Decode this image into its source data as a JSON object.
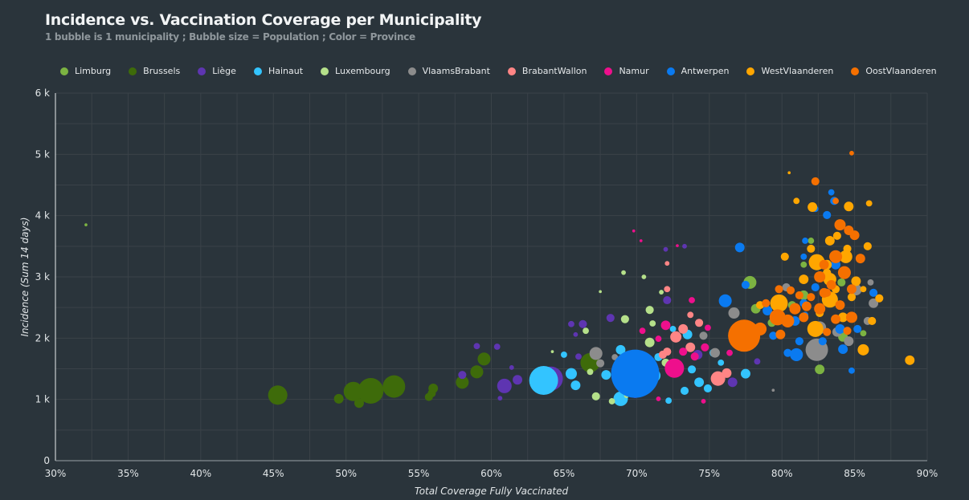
{
  "title": "Incidence vs. Vaccination Coverage per Municipality",
  "subtitle": "1 bubble is 1 municipality ; Bubble size = Population ;  Color = Province",
  "chart_data": {
    "type": "scatter",
    "variant": "bubble",
    "title": "Incidence vs. Vaccination Coverage per Municipality",
    "subtitle": "1 bubble is 1 municipality ; Bubble size = Population ;  Color = Province",
    "xlabel": "Total Coverage Fully Vaccinated",
    "ylabel": "Incidence (Sum 14 days)",
    "xlim": [
      30,
      90
    ],
    "ylim": [
      0,
      6000
    ],
    "x_ticks": [
      "30%",
      "35%",
      "40%",
      "45%",
      "50%",
      "55%",
      "60%",
      "65%",
      "70%",
      "75%",
      "80%",
      "85%",
      "90%"
    ],
    "y_ticks": [
      "0",
      "1 k",
      "2 k",
      "3 k",
      "4 k",
      "5 k",
      "6 k"
    ],
    "grid": true,
    "legend_position": "top",
    "point_format": [
      "coverage_pct",
      "incidence",
      "population_thousands"
    ],
    "series": [
      {
        "name": "Limburg",
        "color": "#7cb342",
        "points": [
          [
            32.1,
            3850,
            2
          ],
          [
            77.8,
            2910,
            38
          ],
          [
            80.7,
            2540,
            15
          ],
          [
            81.5,
            2700,
            21
          ],
          [
            78.2,
            2480,
            21
          ],
          [
            81.5,
            3200,
            9
          ],
          [
            82.0,
            3590,
            9
          ],
          [
            84.2,
            2020,
            21
          ],
          [
            85.6,
            2080,
            9
          ],
          [
            79.3,
            2250,
            15
          ],
          [
            82.6,
            1490,
            21
          ],
          [
            84.1,
            2910,
            15
          ]
        ]
      },
      {
        "name": "Brussels",
        "color": "#3e6b0a",
        "points": [
          [
            45.3,
            1070,
            85
          ],
          [
            49.5,
            1010,
            21
          ],
          [
            50.5,
            1130,
            85
          ],
          [
            50.9,
            940,
            21
          ],
          [
            51.7,
            1140,
            150
          ],
          [
            53.3,
            1210,
            115
          ],
          [
            55.9,
            1100,
            15
          ],
          [
            56.0,
            1180,
            21
          ],
          [
            55.7,
            1040,
            15
          ],
          [
            58.0,
            1280,
            38
          ],
          [
            59.0,
            1450,
            38
          ],
          [
            59.5,
            1660,
            38
          ],
          [
            66.8,
            1600,
            85
          ]
        ]
      },
      {
        "name": "Liège",
        "color": "#5e35b1",
        "points": [
          [
            58.0,
            1400,
            15
          ],
          [
            59.0,
            1870,
            9
          ],
          [
            60.4,
            1860,
            9
          ],
          [
            60.9,
            1220,
            48
          ],
          [
            61.8,
            1320,
            21
          ],
          [
            61.4,
            1520,
            5
          ],
          [
            64.1,
            1340,
            132
          ],
          [
            60.6,
            1020,
            5
          ],
          [
            65.5,
            2230,
            9
          ],
          [
            66.3,
            2230,
            15
          ],
          [
            65.8,
            2060,
            5
          ],
          [
            68.2,
            2330,
            15
          ],
          [
            76.6,
            1280,
            21
          ],
          [
            78.3,
            1620,
            9
          ],
          [
            72.0,
            3450,
            5
          ],
          [
            73.3,
            3500,
            5
          ],
          [
            72.1,
            2620,
            15
          ],
          [
            69.9,
            1100,
            21
          ],
          [
            74.2,
            1730,
            21
          ],
          [
            66.0,
            1700,
            9
          ],
          [
            71.0,
            1950,
            9
          ]
        ]
      },
      {
        "name": "Hainaut",
        "color": "#33c4ff",
        "points": [
          [
            63.6,
            1310,
            190
          ],
          [
            65.5,
            1420,
            29
          ],
          [
            65.0,
            1730,
            9
          ],
          [
            65.8,
            1230,
            21
          ],
          [
            68.9,
            1010,
            48
          ],
          [
            69.3,
            1340,
            115
          ],
          [
            68.9,
            1810,
            21
          ],
          [
            71.5,
            1690,
            15
          ],
          [
            73.3,
            1140,
            15
          ],
          [
            74.3,
            1280,
            21
          ],
          [
            77.5,
            1420,
            21
          ],
          [
            73.5,
            2060,
            21
          ],
          [
            75.3,
            1760,
            15
          ],
          [
            72.2,
            980,
            9
          ],
          [
            74.9,
            1180,
            15
          ],
          [
            71.2,
            1390,
            38
          ],
          [
            73.8,
            1490,
            15
          ],
          [
            75.8,
            1600,
            9
          ],
          [
            67.9,
            1400,
            21
          ],
          [
            72.5,
            2150,
            9
          ]
        ]
      },
      {
        "name": "Luxembourg",
        "color": "#b5e08a",
        "points": [
          [
            64.2,
            1780,
            2
          ],
          [
            67.5,
            2760,
            2
          ],
          [
            69.1,
            3070,
            5
          ],
          [
            70.5,
            3000,
            5
          ],
          [
            69.2,
            2310,
            15
          ],
          [
            70.9,
            2460,
            15
          ],
          [
            70.9,
            1930,
            21
          ],
          [
            67.2,
            1050,
            15
          ],
          [
            68.3,
            970,
            9
          ],
          [
            66.8,
            1450,
            9
          ],
          [
            66.5,
            2120,
            9
          ],
          [
            69.3,
            1060,
            5
          ],
          [
            71.1,
            2240,
            9
          ],
          [
            71.7,
            2750,
            5
          ],
          [
            72.0,
            1600,
            15
          ],
          [
            70.0,
            1700,
            9
          ]
        ]
      },
      {
        "name": "VlaamsBrabant",
        "color": "#8c8c8c",
        "points": [
          [
            67.2,
            1750,
            38
          ],
          [
            67.5,
            1590,
            15
          ],
          [
            68.5,
            1690,
            9
          ],
          [
            76.7,
            2410,
            29
          ],
          [
            75.4,
            1760,
            21
          ],
          [
            79.4,
            1150,
            2
          ],
          [
            82.4,
            1810,
            115
          ],
          [
            82.6,
            2170,
            38
          ],
          [
            80.3,
            2830,
            15
          ],
          [
            85.1,
            2790,
            29
          ],
          [
            86.3,
            2570,
            21
          ],
          [
            84.6,
            1950,
            21
          ],
          [
            85.9,
            2280,
            15
          ],
          [
            86.1,
            2910,
            9
          ],
          [
            74.6,
            2040,
            15
          ],
          [
            77.0,
            2200,
            15
          ],
          [
            83.8,
            2100,
            21
          ]
        ]
      },
      {
        "name": "BrabantWallon",
        "color": "#ff8585",
        "points": [
          [
            72.1,
            3220,
            5
          ],
          [
            72.1,
            2800,
            9
          ],
          [
            72.7,
            2020,
            29
          ],
          [
            73.7,
            1850,
            21
          ],
          [
            75.6,
            1340,
            48
          ],
          [
            72.1,
            1780,
            15
          ],
          [
            73.7,
            2380,
            9
          ],
          [
            74.3,
            2250,
            15
          ],
          [
            73.2,
            2150,
            21
          ],
          [
            76.2,
            1430,
            21
          ],
          [
            71.8,
            1730,
            15
          ]
        ]
      },
      {
        "name": "Namur",
        "color": "#ee0f8c",
        "points": [
          [
            69.8,
            3750,
            2
          ],
          [
            70.3,
            3590,
            2
          ],
          [
            72.8,
            3510,
            2
          ],
          [
            72.6,
            1510,
            85
          ],
          [
            72.0,
            2210,
            21
          ],
          [
            73.2,
            1780,
            15
          ],
          [
            74.7,
            1850,
            15
          ],
          [
            71.5,
            1990,
            9
          ],
          [
            73.8,
            2620,
            9
          ],
          [
            70.4,
            2120,
            9
          ],
          [
            71.5,
            1010,
            5
          ],
          [
            74.6,
            970,
            5
          ],
          [
            74.9,
            2170,
            9
          ],
          [
            76.4,
            1760,
            9
          ],
          [
            74.0,
            1700,
            15
          ]
        ]
      },
      {
        "name": "Antwerpen",
        "color": "#0a7af0",
        "points": [
          [
            69.9,
            1420,
            530
          ],
          [
            77.1,
            3480,
            21
          ],
          [
            76.1,
            2610,
            38
          ],
          [
            77.5,
            2870,
            15
          ],
          [
            79.4,
            2040,
            15
          ],
          [
            80.9,
            2280,
            21
          ],
          [
            80.4,
            1760,
            15
          ],
          [
            81.0,
            1730,
            38
          ],
          [
            84.2,
            1820,
            21
          ],
          [
            84.8,
            1470,
            9
          ],
          [
            83.6,
            4240,
            15
          ],
          [
            83.1,
            4010,
            15
          ],
          [
            82.3,
            4110,
            9
          ],
          [
            83.4,
            4380,
            9
          ],
          [
            81.6,
            3590,
            9
          ],
          [
            81.5,
            3330,
            9
          ],
          [
            83.7,
            3200,
            21
          ],
          [
            82.3,
            2830,
            15
          ],
          [
            85.2,
            2150,
            15
          ],
          [
            82.8,
            1950,
            15
          ],
          [
            81.2,
            1950,
            15
          ],
          [
            81.5,
            2570,
            15
          ],
          [
            79.0,
            2450,
            21
          ],
          [
            86.3,
            2740,
            15
          ],
          [
            78.4,
            2150,
            9
          ],
          [
            81.6,
            2380,
            9
          ],
          [
            84.0,
            2150,
            21
          ]
        ]
      },
      {
        "name": "WestVlaanderen",
        "color": "#ffa600",
        "points": [
          [
            88.8,
            1640,
            21
          ],
          [
            85.6,
            1810,
            29
          ],
          [
            86.2,
            2280,
            15
          ],
          [
            86.7,
            2650,
            15
          ],
          [
            85.9,
            3500,
            15
          ],
          [
            86.0,
            4200,
            9
          ],
          [
            80.5,
            4700,
            2
          ],
          [
            81.0,
            4240,
            9
          ],
          [
            82.1,
            4140,
            21
          ],
          [
            84.6,
            4150,
            21
          ],
          [
            83.8,
            3670,
            15
          ],
          [
            82.4,
            3240,
            59
          ],
          [
            83.3,
            3590,
            21
          ],
          [
            84.4,
            3330,
            38
          ],
          [
            83.1,
            3200,
            21
          ],
          [
            83.7,
            2800,
            15
          ],
          [
            83.3,
            2630,
            59
          ],
          [
            82.3,
            2150,
            59
          ],
          [
            79.8,
            2570,
            71
          ],
          [
            83.3,
            2960,
            38
          ],
          [
            81.5,
            2960,
            21
          ],
          [
            82.0,
            3460,
            15
          ],
          [
            83.1,
            3070,
            15
          ],
          [
            84.8,
            2670,
            15
          ],
          [
            82.6,
            2410,
            15
          ],
          [
            84.2,
            2340,
            21
          ],
          [
            80.2,
            3330,
            15
          ],
          [
            78.5,
            2540,
            15
          ],
          [
            85.1,
            2930,
            21
          ],
          [
            85.6,
            2800,
            9
          ],
          [
            84.5,
            3460,
            15
          ],
          [
            84.0,
            3850,
            15
          ]
        ]
      },
      {
        "name": "OostVlaanderen",
        "color": "#f57000",
        "points": [
          [
            77.4,
            2040,
            236
          ],
          [
            78.5,
            2150,
            38
          ],
          [
            84.8,
            5020,
            5
          ],
          [
            82.3,
            4560,
            15
          ],
          [
            83.7,
            4240,
            9
          ],
          [
            84.0,
            3850,
            29
          ],
          [
            84.6,
            3760,
            21
          ],
          [
            85.0,
            3680,
            21
          ],
          [
            85.4,
            3300,
            21
          ],
          [
            82.9,
            3200,
            21
          ],
          [
            83.7,
            3330,
            38
          ],
          [
            84.3,
            3070,
            38
          ],
          [
            84.8,
            2800,
            21
          ],
          [
            83.4,
            2870,
            21
          ],
          [
            82.6,
            3000,
            29
          ],
          [
            83.1,
            2740,
            15
          ],
          [
            82.0,
            2670,
            15
          ],
          [
            79.7,
            2340,
            59
          ],
          [
            80.4,
            2280,
            38
          ],
          [
            79.8,
            2800,
            15
          ],
          [
            84.8,
            2340,
            29
          ],
          [
            83.7,
            2310,
            21
          ],
          [
            80.9,
            2480,
            29
          ],
          [
            81.7,
            2520,
            21
          ],
          [
            82.6,
            2480,
            29
          ],
          [
            84.0,
            2540,
            21
          ],
          [
            82.9,
            2740,
            21
          ],
          [
            81.5,
            2340,
            21
          ],
          [
            80.6,
            2780,
            15
          ],
          [
            83.1,
            2100,
            15
          ],
          [
            84.5,
            2120,
            15
          ],
          [
            81.2,
            2700,
            15
          ],
          [
            78.9,
            2570,
            15
          ],
          [
            79.9,
            2060,
            21
          ]
        ]
      }
    ]
  },
  "colors": {
    "background": "#2a343b",
    "grid": "#3a4248"
  }
}
